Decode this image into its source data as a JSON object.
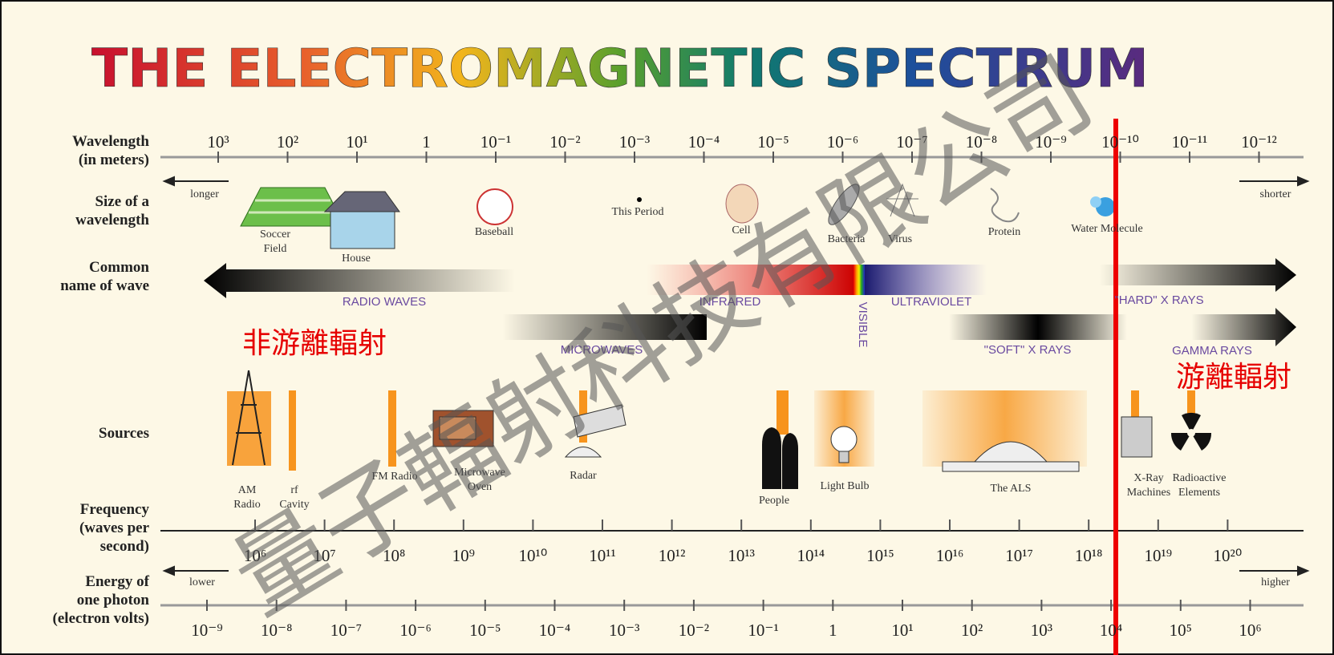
{
  "title": "THE ELECTROMAGNETIC SPECTRUM",
  "row_labels": {
    "wavelength": [
      "Wavelength",
      "(in meters)"
    ],
    "size": [
      "Size of a",
      "wavelength"
    ],
    "common_name": [
      "Common",
      "name of wave"
    ],
    "sources": [
      "Sources"
    ],
    "frequency": [
      "Frequency",
      "(waves per",
      "second)"
    ],
    "energy": [
      "Energy of",
      "one photon",
      "(electron volts)"
    ]
  },
  "wavelength_ticks": [
    "10³",
    "10²",
    "10¹",
    "1",
    "10⁻¹",
    "10⁻²",
    "10⁻³",
    "10⁻⁴",
    "10⁻⁵",
    "10⁻⁶",
    "10⁻⁷",
    "10⁻⁸",
    "10⁻⁹",
    "10⁻¹⁰",
    "10⁻¹¹",
    "10⁻¹²"
  ],
  "wavelength_direction": {
    "left": "longer",
    "right": "shorter"
  },
  "sizes": [
    [
      "Soccer",
      "Field"
    ],
    [
      "House"
    ],
    [
      "Baseball"
    ],
    [
      "This Period"
    ],
    [
      "Cell"
    ],
    [
      "Bacteria"
    ],
    [
      "Virus"
    ],
    [
      "Protein"
    ],
    [
      "Water Molecule"
    ]
  ],
  "waves": [
    "RADIO WAVES",
    "INFRARED",
    "VISIBLE",
    "ULTRAVIOLET",
    "\"HARD\" X RAYS",
    "MICROWAVES",
    "\"SOFT\" X RAYS",
    "GAMMA RAYS"
  ],
  "sources": [
    [
      "AM",
      "Radio"
    ],
    [
      "rf",
      "Cavity"
    ],
    [
      "FM Radio"
    ],
    [
      "Microwave",
      "Oven"
    ],
    [
      "Radar"
    ],
    [
      "People"
    ],
    [
      "Light Bulb"
    ],
    [
      "The ALS"
    ],
    [
      "X-Ray",
      "Machines"
    ],
    [
      "Radioactive",
      "Elements"
    ]
  ],
  "frequency_ticks": [
    "10⁶",
    "10⁷",
    "10⁸",
    "10⁹",
    "10¹⁰",
    "10¹¹",
    "10¹²",
    "10¹³",
    "10¹⁴",
    "10¹⁵",
    "10¹⁶",
    "10¹⁷",
    "10¹⁸",
    "10¹⁹",
    "10²⁰"
  ],
  "energy_direction": {
    "left": "lower",
    "right": "higher"
  },
  "energy_ticks": [
    "10⁻⁹",
    "10⁻⁸",
    "10⁻⁷",
    "10⁻⁶",
    "10⁻⁵",
    "10⁻⁴",
    "10⁻³",
    "10⁻²",
    "10⁻¹",
    "1",
    "10¹",
    "10²",
    "10³",
    "10⁴",
    "10⁵",
    "10⁶"
  ],
  "annotations": {
    "non_ionizing": "非游離輻射",
    "ionizing": "游離輻射"
  },
  "watermark": "量子輻射科技有限公司"
}
